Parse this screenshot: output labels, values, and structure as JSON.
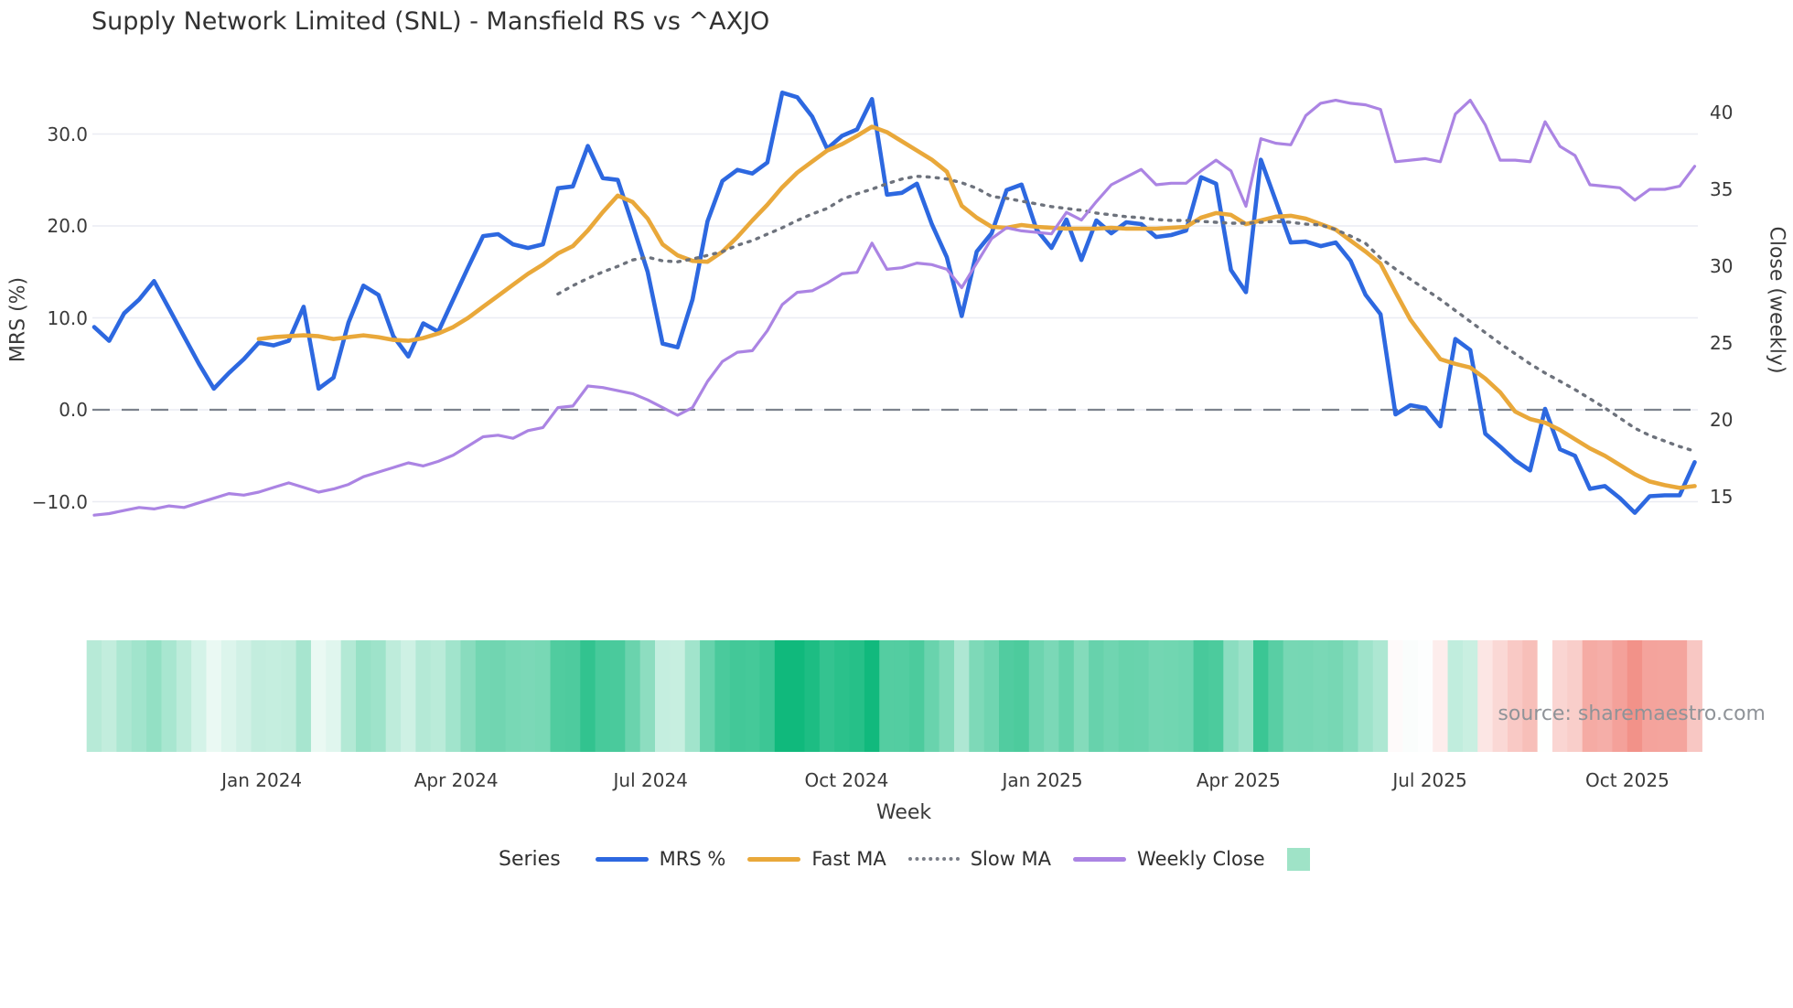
{
  "source_note": "source: sharemaestro.com",
  "legend": {
    "title": "Series",
    "items": [
      {
        "label": "MRS %",
        "swatch": "line",
        "color": "#2d68e0"
      },
      {
        "label": "Fast MA",
        "swatch": "line",
        "color": "#e9a83a"
      },
      {
        "label": "Slow MA",
        "swatch": "dotted",
        "color": "#7a7e87"
      },
      {
        "label": "Weekly Close",
        "swatch": "line",
        "color": "#ab84e3"
      },
      {
        "label": "",
        "swatch": "square",
        "color": "#9fe3c7"
      }
    ]
  },
  "chart_data": {
    "type": "line",
    "title": "Supply Network Limited (SNL) - Mansfield RS vs ^AXJO",
    "xlabel": "Week",
    "ylabel_left": "MRS (%)",
    "ylabel_right": "Close (weekly)",
    "grid": true,
    "zero_line": {
      "value": 0,
      "style": "dashed",
      "color": "#7d828d"
    },
    "left_axis": {
      "ticks": [
        {
          "value": 30,
          "label": "30.0"
        },
        {
          "value": 20,
          "label": "20.0"
        },
        {
          "value": 10,
          "label": "10.0"
        },
        {
          "value": 0,
          "label": "0.0"
        },
        {
          "value": -10,
          "label": "−10.0"
        }
      ]
    },
    "right_axis": {
      "ticks": [
        {
          "value": 40,
          "label": "40"
        },
        {
          "value": 35,
          "label": "35"
        },
        {
          "value": 30,
          "label": "30"
        },
        {
          "value": 25,
          "label": "25"
        },
        {
          "value": 20,
          "label": "20"
        },
        {
          "value": 15,
          "label": "15"
        }
      ]
    },
    "x_ticks": [
      {
        "label": "Jan 2024",
        "week": 11.2
      },
      {
        "label": "Apr 2024",
        "week": 24.2
      },
      {
        "label": "Jul 2024",
        "week": 37.2
      },
      {
        "label": "Oct 2024",
        "week": 50.3
      },
      {
        "label": "Jan 2025",
        "week": 63.4
      },
      {
        "label": "Apr 2025",
        "week": 76.5
      },
      {
        "label": "Jul 2025",
        "week": 89.3
      },
      {
        "label": "Oct 2025",
        "week": 102.5
      }
    ],
    "series": [
      {
        "name": "MRS %",
        "axis": "left",
        "style": "solid",
        "color": "#2d68e0",
        "values": [
          9.0,
          7.5,
          10.5,
          12.0,
          14.0,
          11.0,
          8.0,
          5.0,
          2.3,
          4.0,
          5.5,
          7.3,
          7.0,
          7.5,
          11.2,
          2.3,
          3.5,
          9.5,
          13.5,
          12.5,
          8.0,
          5.8,
          9.4,
          8.5,
          12.0,
          15.5,
          18.9,
          19.1,
          18.0,
          17.6,
          18.0,
          24.1,
          24.3,
          28.7,
          25.2,
          25.0,
          20.1,
          15.0,
          7.2,
          6.8,
          12.0,
          20.5,
          24.9,
          26.1,
          25.7,
          26.9,
          34.5,
          34.0,
          31.9,
          28.4,
          29.8,
          30.5,
          33.8,
          23.4,
          23.6,
          24.6,
          20.2,
          16.6,
          10.2,
          17.2,
          19.2,
          23.9,
          24.5,
          19.6,
          17.6,
          20.7,
          16.3,
          20.6,
          19.2,
          20.4,
          20.2,
          18.8,
          19.0,
          19.5,
          25.3,
          24.6,
          15.2,
          12.8,
          27.2,
          22.7,
          18.2,
          18.3,
          17.8,
          18.2,
          16.2,
          12.5,
          10.4,
          -0.5,
          0.5,
          0.2,
          -1.8,
          7.7,
          6.5,
          -2.6,
          -4.0,
          -5.5,
          -6.6,
          0.1,
          -4.3,
          -5.0,
          -8.6,
          -8.3,
          -9.6,
          -11.2,
          -9.4,
          -9.3,
          -9.3,
          -5.7
        ]
      },
      {
        "name": "Fast MA",
        "axis": "left",
        "style": "solid",
        "color": "#e9a83a",
        "values": [
          null,
          null,
          null,
          null,
          null,
          null,
          null,
          null,
          null,
          null,
          null,
          7.7,
          7.9,
          8.0,
          8.1,
          8.0,
          7.7,
          7.9,
          8.1,
          7.9,
          7.6,
          7.5,
          7.8,
          8.3,
          9.0,
          10.0,
          11.2,
          12.4,
          13.6,
          14.8,
          15.8,
          17.0,
          17.8,
          19.5,
          21.5,
          23.3,
          22.6,
          20.8,
          18.0,
          16.8,
          16.2,
          16.1,
          17.2,
          18.8,
          20.6,
          22.3,
          24.2,
          25.8,
          27.0,
          28.2,
          28.9,
          29.8,
          30.8,
          30.2,
          29.2,
          28.2,
          27.2,
          25.9,
          22.2,
          20.9,
          19.9,
          19.8,
          20.1,
          19.9,
          19.8,
          19.7,
          19.7,
          19.7,
          19.8,
          19.7,
          19.7,
          19.7,
          19.8,
          19.9,
          20.9,
          21.4,
          21.2,
          20.2,
          20.6,
          21.0,
          21.1,
          20.8,
          20.2,
          19.6,
          18.4,
          17.2,
          15.9,
          12.8,
          9.8,
          7.6,
          5.5,
          5.0,
          4.6,
          3.4,
          1.9,
          -0.2,
          -1.0,
          -1.4,
          -2.2,
          -3.2,
          -4.2,
          -5.0,
          -6.0,
          -7.0,
          -7.8,
          -8.2,
          -8.5,
          -8.3
        ]
      },
      {
        "name": "Slow MA",
        "axis": "left",
        "style": "dotted",
        "color": "#6d727c",
        "values": [
          null,
          null,
          null,
          null,
          null,
          null,
          null,
          null,
          null,
          null,
          null,
          null,
          null,
          null,
          null,
          null,
          null,
          null,
          null,
          null,
          null,
          null,
          null,
          null,
          null,
          null,
          null,
          null,
          null,
          null,
          null,
          12.6,
          13.5,
          14.3,
          15.0,
          15.6,
          16.3,
          16.6,
          16.2,
          16.1,
          16.4,
          16.8,
          17.2,
          17.9,
          18.4,
          19.1,
          19.8,
          20.6,
          21.3,
          21.9,
          22.9,
          23.5,
          24.0,
          24.6,
          25.1,
          25.4,
          25.3,
          25.1,
          24.7,
          24.1,
          23.2,
          23.0,
          22.7,
          22.4,
          22.1,
          21.9,
          21.7,
          21.4,
          21.2,
          21.0,
          20.9,
          20.7,
          20.6,
          20.6,
          20.5,
          20.4,
          20.3,
          20.3,
          20.4,
          20.5,
          20.4,
          20.2,
          20.1,
          19.6,
          18.9,
          18.1,
          16.5,
          15.3,
          14.2,
          13.1,
          12.0,
          10.8,
          9.6,
          8.4,
          7.2,
          6.1,
          5.0,
          4.0,
          3.1,
          2.2,
          1.2,
          0.2,
          -0.9,
          -2.0,
          -2.8,
          -3.4,
          -4.0,
          -4.5
        ]
      },
      {
        "name": "Weekly Close",
        "axis": "right",
        "style": "solid",
        "color": "#ab84e3",
        "values": [
          13.8,
          13.9,
          14.1,
          14.3,
          14.2,
          14.4,
          14.3,
          14.6,
          14.9,
          15.2,
          15.1,
          15.3,
          15.6,
          15.9,
          15.6,
          15.3,
          15.5,
          15.8,
          16.3,
          16.6,
          16.9,
          17.2,
          17.0,
          17.3,
          17.7,
          18.3,
          18.9,
          19.0,
          18.8,
          19.3,
          19.5,
          20.8,
          20.9,
          22.2,
          22.1,
          21.9,
          21.7,
          21.3,
          20.8,
          20.3,
          20.8,
          22.5,
          23.8,
          24.4,
          24.5,
          25.8,
          27.5,
          28.3,
          28.4,
          28.9,
          29.5,
          29.6,
          31.5,
          29.8,
          29.9,
          30.2,
          30.1,
          29.8,
          28.6,
          30.2,
          31.8,
          32.5,
          32.3,
          32.2,
          32.1,
          33.5,
          33.0,
          34.2,
          35.3,
          35.8,
          36.3,
          35.3,
          35.4,
          35.4,
          36.2,
          36.9,
          36.2,
          33.9,
          38.3,
          38.0,
          37.9,
          39.8,
          40.6,
          40.8,
          40.6,
          40.5,
          40.2,
          36.8,
          36.9,
          37.0,
          36.8,
          39.9,
          40.8,
          39.2,
          36.9,
          36.9,
          36.8,
          39.4,
          37.8,
          37.2,
          35.3,
          35.2,
          35.1,
          34.3,
          35.0,
          35.0,
          35.2,
          36.5
        ]
      }
    ],
    "heatmap": {
      "source_series": "MRS %",
      "positive_color": "#10b97c",
      "negative_color": "#f08076",
      "neutral_color": "#ffffff"
    }
  }
}
